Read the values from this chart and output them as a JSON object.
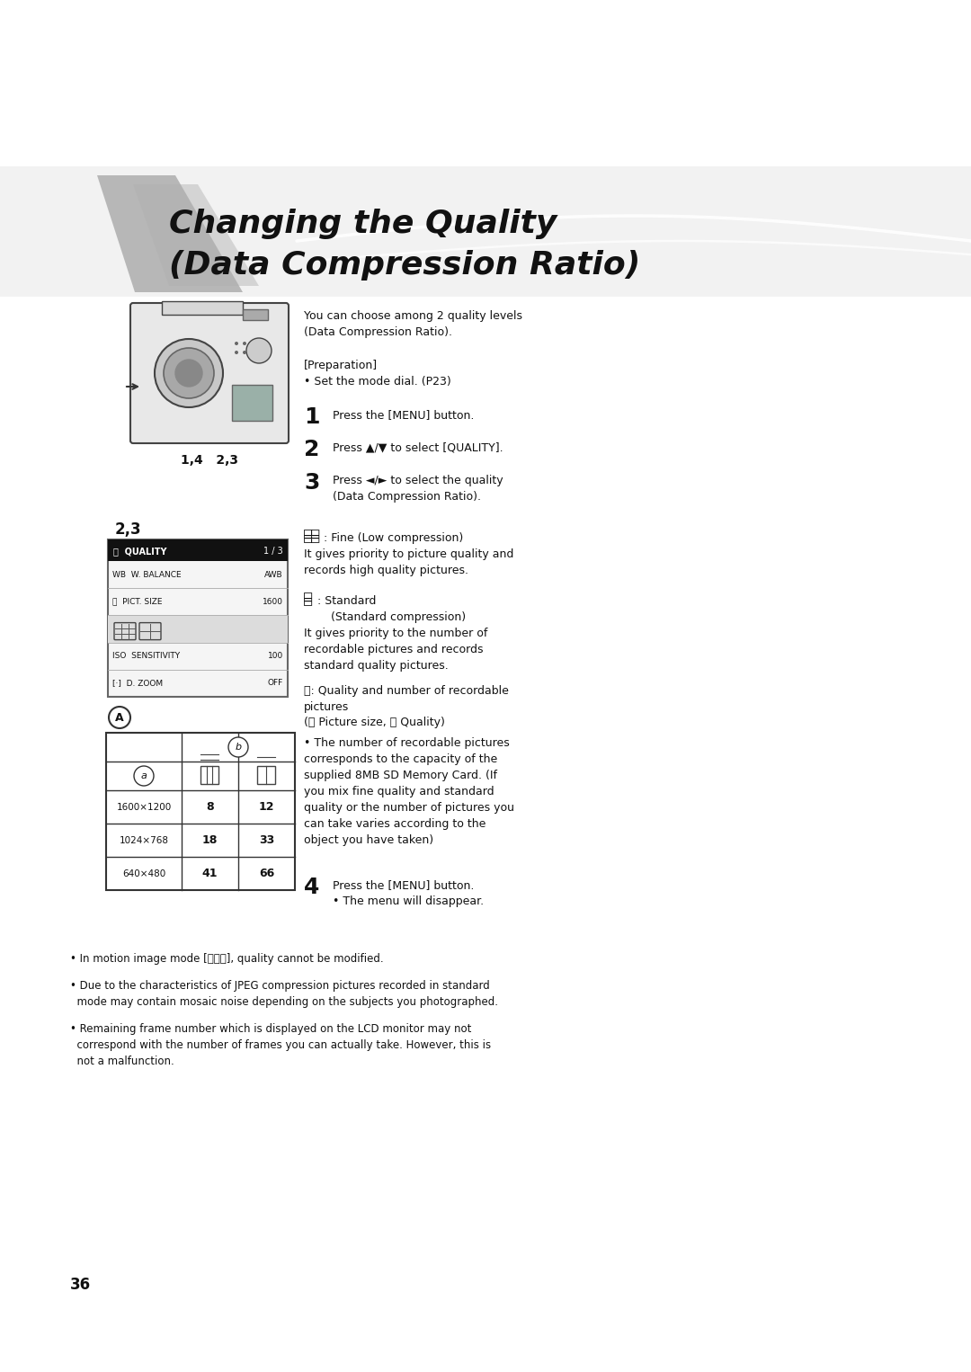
{
  "bg_color": "#ffffff",
  "page_width": 10.8,
  "page_height": 15.26,
  "title_line1": "Changing the Quality",
  "title_line2": "(Data Compression Ratio)",
  "label_14_23": "1,4   2,3",
  "label_23": "2,3",
  "intro_text": "You can choose among 2 quality levels\n(Data Compression Ratio).",
  "prep_header": "[Preparation]",
  "prep_bullet": "• Set the mode dial. (P23)",
  "menu_title": "QUALITY",
  "menu_page": "1 / 3",
  "table_rows": [
    {
      "size": "1600×1200",
      "fine": "8",
      "std": "12"
    },
    {
      "size": "1024×768",
      "fine": "18",
      "std": "33"
    },
    {
      "size": "640×480",
      "fine": "41",
      "std": "66"
    }
  ],
  "page_number": "36",
  "body_fontsize": 9.0,
  "small_fontsize": 8.5,
  "step_num_fontsize": 18,
  "title_fontsize": 26
}
